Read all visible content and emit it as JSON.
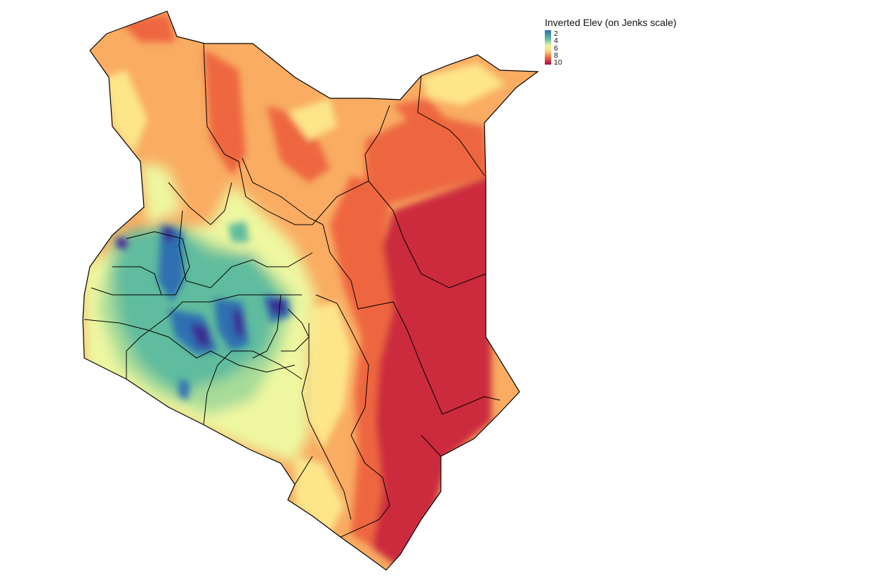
{
  "legend": {
    "title": "Inverted Elev (on Jenks scale)",
    "ticks": [
      "2",
      "4",
      "6",
      "8",
      "10"
    ],
    "range": [
      1,
      10
    ],
    "colors": [
      "#3b2a93",
      "#2d6fb1",
      "#5fbc9e",
      "#a6db98",
      "#eef7a0",
      "#fde58a",
      "#f9ac62",
      "#ee6640",
      "#cc2a3d",
      "#a50a45"
    ]
  },
  "map": {
    "country": "Kenya",
    "palette": "Spectral"
  }
}
